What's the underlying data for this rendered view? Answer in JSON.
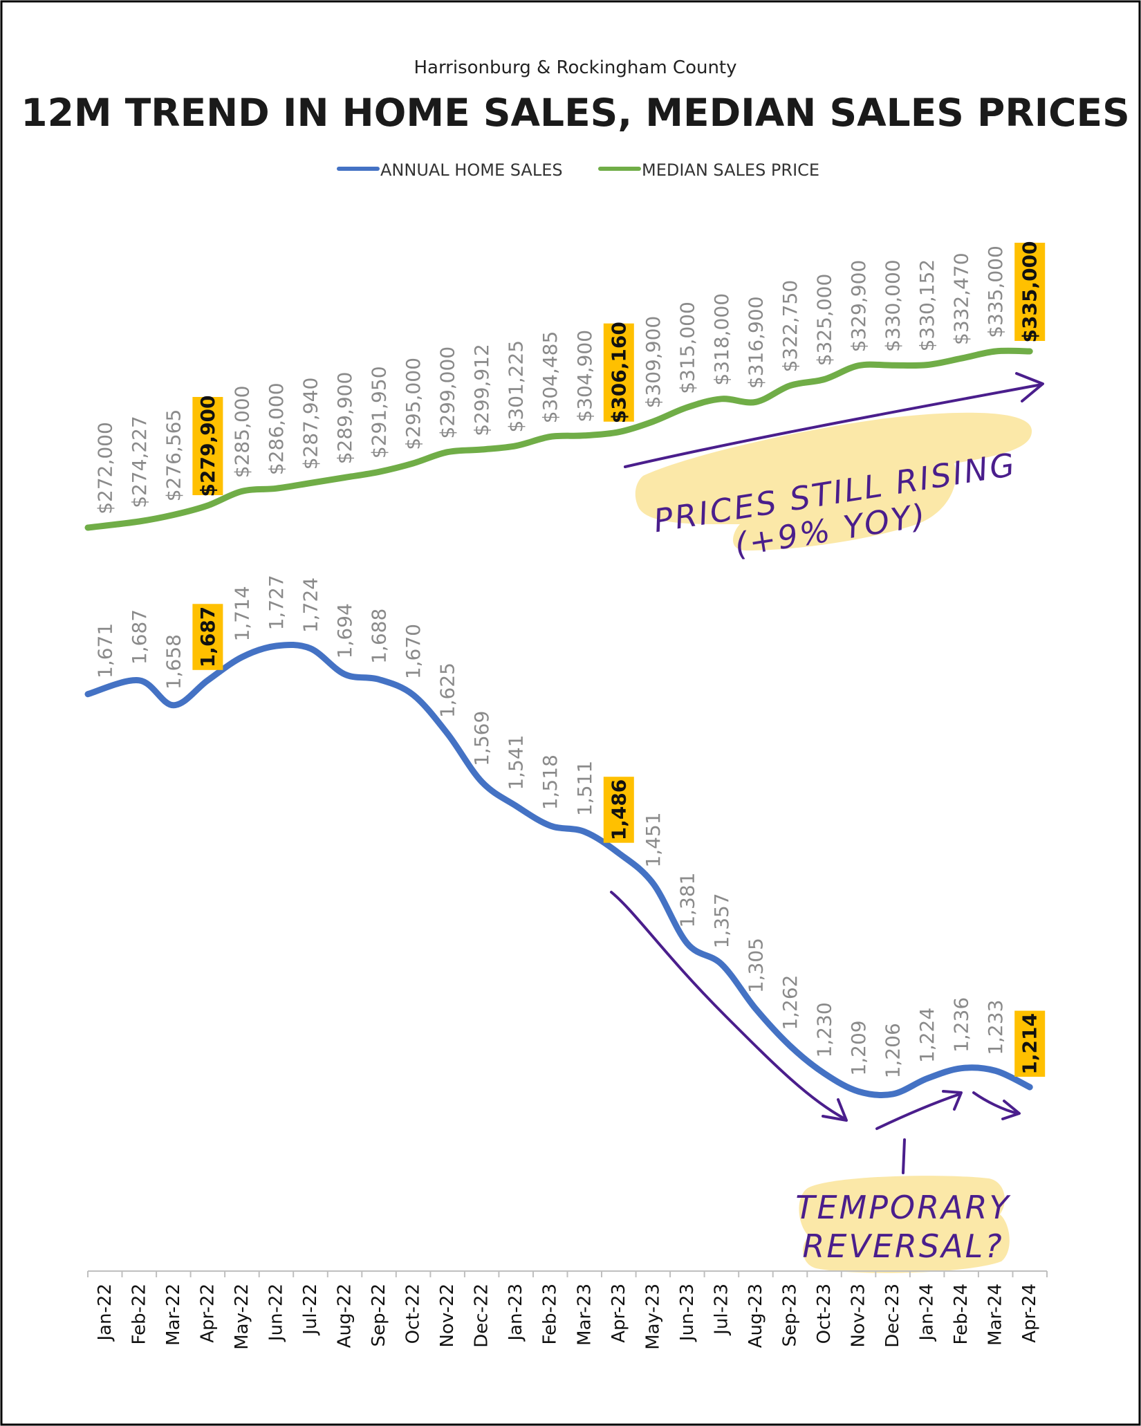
{
  "subtitle": "Harrisonburg & Rockingham County",
  "chart_data": {
    "type": "line",
    "title": "12M TREND IN HOME SALES, MEDIAN SALES PRICES",
    "categories": [
      "Jan-22",
      "Feb-22",
      "Mar-22",
      "Apr-22",
      "May-22",
      "Jun-22",
      "Jul-22",
      "Aug-22",
      "Sep-22",
      "Oct-22",
      "Nov-22",
      "Dec-22",
      "Jan-23",
      "Feb-23",
      "Mar-23",
      "Apr-23",
      "May-23",
      "Jun-23",
      "Jul-23",
      "Aug-23",
      "Sep-23",
      "Oct-23",
      "Nov-23",
      "Dec-23",
      "Jan-24",
      "Feb-24",
      "Mar-24",
      "Apr-24"
    ],
    "legend_position": "top-center",
    "grid": false,
    "series": [
      {
        "name": "ANNUAL HOME SALES",
        "color": "#4472c4",
        "values": [
          1671,
          1687,
          1658,
          1687,
          1714,
          1727,
          1724,
          1694,
          1688,
          1670,
          1625,
          1569,
          1541,
          1518,
          1511,
          1486,
          1451,
          1381,
          1357,
          1305,
          1262,
          1230,
          1209,
          1206,
          1224,
          1236,
          1233,
          1214
        ],
        "labels": [
          "1,671",
          "1,687",
          "1,658",
          "1,687",
          "1,714",
          "1,727",
          "1,724",
          "1,694",
          "1,688",
          "1,670",
          "1,625",
          "1,569",
          "1,541",
          "1,518",
          "1,511",
          "1,486",
          "1,451",
          "1,381",
          "1,357",
          "1,305",
          "1,262",
          "1,230",
          "1,209",
          "1,206",
          "1,224",
          "1,236",
          "1,233",
          "1,214"
        ],
        "highlighted": [
          3,
          15,
          27
        ]
      },
      {
        "name": "MEDIAN SALES PRICE",
        "color": "#70ad47",
        "values": [
          272000,
          274227,
          276565,
          279900,
          285000,
          286000,
          287940,
          289900,
          291950,
          295000,
          299000,
          299912,
          301225,
          304485,
          304900,
          306160,
          309900,
          315000,
          318000,
          316900,
          322750,
          325000,
          329900,
          330000,
          330152,
          332470,
          335000,
          335000
        ],
        "labels": [
          "$272,000",
          "$274,227",
          "$276,565",
          "$279,900",
          "$285,000",
          "$286,000",
          "$287,940",
          "$289,900",
          "$291,950",
          "$295,000",
          "$299,000",
          "$299,912",
          "$301,225",
          "$304,485",
          "$304,900",
          "$306,160",
          "$309,900",
          "$315,000",
          "$318,000",
          "$316,900",
          "$322,750",
          "$325,000",
          "$329,900",
          "$330,000",
          "$330,152",
          "$332,470",
          "$335,000",
          "$335,000"
        ],
        "highlighted": [
          3,
          15,
          27
        ]
      }
    ],
    "highlight_color": "#ffc000"
  },
  "annotations": {
    "prices_line1": "PRICES STILL RISING",
    "prices_line2": "(+9% YOY)",
    "reversal_line1": "TEMPORARY",
    "reversal_line2": "REVERSAL?",
    "annotation_color": "#4a1e8c",
    "marker_color": "#fbe7a3"
  }
}
